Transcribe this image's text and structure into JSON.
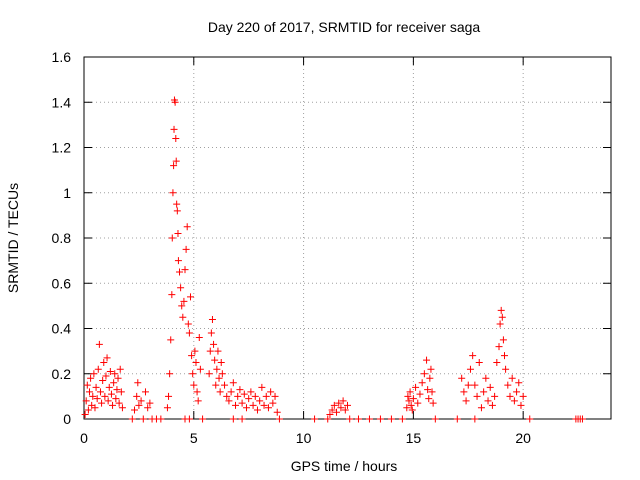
{
  "chart_data": {
    "type": "scatter",
    "title": "Day 220 of 2017, SRMTID for receiver saga",
    "xlabel": "GPS time / hours",
    "ylabel": "SRMTID / TECUs",
    "xlim": [
      0,
      24
    ],
    "ylim": [
      0,
      1.6
    ],
    "xticks": [
      0,
      5,
      10,
      15,
      20
    ],
    "xtick_labels": [
      "0",
      "5",
      "10",
      "15",
      "20"
    ],
    "yticks": [
      0,
      0.2,
      0.4,
      0.6,
      0.8,
      1,
      1.2,
      1.4,
      1.6
    ],
    "ytick_labels": [
      "0",
      "0.2",
      "0.4",
      "0.6",
      "0.8",
      "1",
      "1.2",
      "1.4",
      "1.6"
    ],
    "grid": true,
    "marker": "+",
    "series_color": "#ff0000",
    "series": [
      {
        "name": "SRMTID",
        "points": [
          [
            0.05,
            0.02
          ],
          [
            0.1,
            0.08
          ],
          [
            0.15,
            0.15
          ],
          [
            0.2,
            0.04
          ],
          [
            0.25,
            0.12
          ],
          [
            0.3,
            0.18
          ],
          [
            0.35,
            0.06
          ],
          [
            0.4,
            0.1
          ],
          [
            0.45,
            0.2
          ],
          [
            0.5,
            0.05
          ],
          [
            0.55,
            0.14
          ],
          [
            0.6,
            0.09
          ],
          [
            0.65,
            0.22
          ],
          [
            0.7,
            0.33
          ],
          [
            0.75,
            0.12
          ],
          [
            0.8,
            0.07
          ],
          [
            0.85,
            0.17
          ],
          [
            0.9,
            0.25
          ],
          [
            0.95,
            0.1
          ],
          [
            1.0,
            0.19
          ],
          [
            1.05,
            0.27
          ],
          [
            1.1,
            0.08
          ],
          [
            1.15,
            0.14
          ],
          [
            1.2,
            0.21
          ],
          [
            1.25,
            0.11
          ],
          [
            1.3,
            0.06
          ],
          [
            1.35,
            0.16
          ],
          [
            1.4,
            0.2
          ],
          [
            1.45,
            0.09
          ],
          [
            1.5,
            0.13
          ],
          [
            1.55,
            0.18
          ],
          [
            1.6,
            0.07
          ],
          [
            1.65,
            0.22
          ],
          [
            1.7,
            0.12
          ],
          [
            1.75,
            0.05
          ],
          [
            2.3,
            0.04
          ],
          [
            2.4,
            0.1
          ],
          [
            2.45,
            0.16
          ],
          [
            2.5,
            0.06
          ],
          [
            2.6,
            0.08
          ],
          [
            2.8,
            0.12
          ],
          [
            2.9,
            0.05
          ],
          [
            3.0,
            0.07
          ],
          [
            3.8,
            0.05
          ],
          [
            3.85,
            0.1
          ],
          [
            3.9,
            0.2
          ],
          [
            3.95,
            0.35
          ],
          [
            4.0,
            0.55
          ],
          [
            4.02,
            0.8
          ],
          [
            4.05,
            1.0
          ],
          [
            4.08,
            1.12
          ],
          [
            4.1,
            1.28
          ],
          [
            4.12,
            1.41
          ],
          [
            4.15,
            1.4
          ],
          [
            4.18,
            1.24
          ],
          [
            4.2,
            1.14
          ],
          [
            4.22,
            0.95
          ],
          [
            4.25,
            0.92
          ],
          [
            4.28,
            0.82
          ],
          [
            4.3,
            0.7
          ],
          [
            4.35,
            0.65
          ],
          [
            4.4,
            0.58
          ],
          [
            4.45,
            0.5
          ],
          [
            4.5,
            0.45
          ],
          [
            4.55,
            0.52
          ],
          [
            4.6,
            0.66
          ],
          [
            4.65,
            0.75
          ],
          [
            4.7,
            0.85
          ],
          [
            4.75,
            0.42
          ],
          [
            4.8,
            0.38
          ],
          [
            4.85,
            0.54
          ],
          [
            4.9,
            0.28
          ],
          [
            4.95,
            0.2
          ],
          [
            5.0,
            0.15
          ],
          [
            5.05,
            0.3
          ],
          [
            5.1,
            0.25
          ],
          [
            5.15,
            0.12
          ],
          [
            5.2,
            0.08
          ],
          [
            5.25,
            0.36
          ],
          [
            5.3,
            0.22
          ],
          [
            5.7,
            0.2
          ],
          [
            5.75,
            0.3
          ],
          [
            5.8,
            0.38
          ],
          [
            5.85,
            0.44
          ],
          [
            5.9,
            0.33
          ],
          [
            5.95,
            0.26
          ],
          [
            6.0,
            0.15
          ],
          [
            6.05,
            0.22
          ],
          [
            6.1,
            0.3
          ],
          [
            6.15,
            0.18
          ],
          [
            6.2,
            0.12
          ],
          [
            6.25,
            0.25
          ],
          [
            6.3,
            0.2
          ],
          [
            6.4,
            0.15
          ],
          [
            6.5,
            0.1
          ],
          [
            6.6,
            0.08
          ],
          [
            6.7,
            0.12
          ],
          [
            6.8,
            0.16
          ],
          [
            6.9,
            0.06
          ],
          [
            7.0,
            0.1
          ],
          [
            7.1,
            0.13
          ],
          [
            7.2,
            0.07
          ],
          [
            7.3,
            0.11
          ],
          [
            7.4,
            0.05
          ],
          [
            7.5,
            0.09
          ],
          [
            7.6,
            0.12
          ],
          [
            7.7,
            0.06
          ],
          [
            7.8,
            0.1
          ],
          [
            7.9,
            0.04
          ],
          [
            8.0,
            0.08
          ],
          [
            8.1,
            0.14
          ],
          [
            8.2,
            0.06
          ],
          [
            8.3,
            0.1
          ],
          [
            8.4,
            0.05
          ],
          [
            8.5,
            0.12
          ],
          [
            8.6,
            0.07
          ],
          [
            8.7,
            0.1
          ],
          [
            8.8,
            0.03
          ],
          [
            11.2,
            0.02
          ],
          [
            11.3,
            0.04
          ],
          [
            11.4,
            0.06
          ],
          [
            11.5,
            0.03
          ],
          [
            11.6,
            0.07
          ],
          [
            11.7,
            0.05
          ],
          [
            11.8,
            0.08
          ],
          [
            11.9,
            0.04
          ],
          [
            12.0,
            0.06
          ],
          [
            14.7,
            0.05
          ],
          [
            14.75,
            0.1
          ],
          [
            14.8,
            0.08
          ],
          [
            14.85,
            0.12
          ],
          [
            14.9,
            0.06
          ],
          [
            14.95,
            0.04
          ],
          [
            15.0,
            0.09
          ],
          [
            15.1,
            0.14
          ],
          [
            15.2,
            0.07
          ],
          [
            15.3,
            0.11
          ],
          [
            15.4,
            0.16
          ],
          [
            15.5,
            0.2
          ],
          [
            15.6,
            0.26
          ],
          [
            15.65,
            0.13
          ],
          [
            15.7,
            0.09
          ],
          [
            15.75,
            0.18
          ],
          [
            15.8,
            0.22
          ],
          [
            15.85,
            0.12
          ],
          [
            15.9,
            0.07
          ],
          [
            17.2,
            0.18
          ],
          [
            17.3,
            0.12
          ],
          [
            17.4,
            0.08
          ],
          [
            17.5,
            0.15
          ],
          [
            17.6,
            0.22
          ],
          [
            17.7,
            0.28
          ],
          [
            17.8,
            0.15
          ],
          [
            17.9,
            0.1
          ],
          [
            18.0,
            0.25
          ],
          [
            18.1,
            0.05
          ],
          [
            18.2,
            0.12
          ],
          [
            18.3,
            0.18
          ],
          [
            18.4,
            0.08
          ],
          [
            18.5,
            0.14
          ],
          [
            18.6,
            0.06
          ],
          [
            18.7,
            0.1
          ],
          [
            18.8,
            0.25
          ],
          [
            18.9,
            0.32
          ],
          [
            18.95,
            0.42
          ],
          [
            19.0,
            0.48
          ],
          [
            19.05,
            0.45
          ],
          [
            19.1,
            0.35
          ],
          [
            19.15,
            0.28
          ],
          [
            19.2,
            0.22
          ],
          [
            19.3,
            0.15
          ],
          [
            19.4,
            0.1
          ],
          [
            19.5,
            0.18
          ],
          [
            19.6,
            0.08
          ],
          [
            19.7,
            0.12
          ],
          [
            19.8,
            0.16
          ],
          [
            19.9,
            0.06
          ],
          [
            20.0,
            0.1
          ],
          [
            2.2,
            0.0
          ],
          [
            2.7,
            0.0
          ],
          [
            3.1,
            0.0
          ],
          [
            3.3,
            0.0
          ],
          [
            3.5,
            0.0
          ],
          [
            4.6,
            0.0
          ],
          [
            4.8,
            0.0
          ],
          [
            5.4,
            0.0
          ],
          [
            6.8,
            0.0
          ],
          [
            7.2,
            0.0
          ],
          [
            8.9,
            0.0
          ],
          [
            10.5,
            0.0
          ],
          [
            11.1,
            0.0
          ],
          [
            12.1,
            0.0
          ],
          [
            12.5,
            0.0
          ],
          [
            13.0,
            0.0
          ],
          [
            13.5,
            0.0
          ],
          [
            14.0,
            0.0
          ],
          [
            14.5,
            0.0
          ],
          [
            16.0,
            0.0
          ],
          [
            17.0,
            0.0
          ],
          [
            17.8,
            0.0
          ],
          [
            20.3,
            0.0
          ],
          [
            22.4,
            0.0
          ],
          [
            22.5,
            0.0
          ],
          [
            22.6,
            0.0
          ],
          [
            22.7,
            0.0
          ]
        ]
      }
    ]
  }
}
